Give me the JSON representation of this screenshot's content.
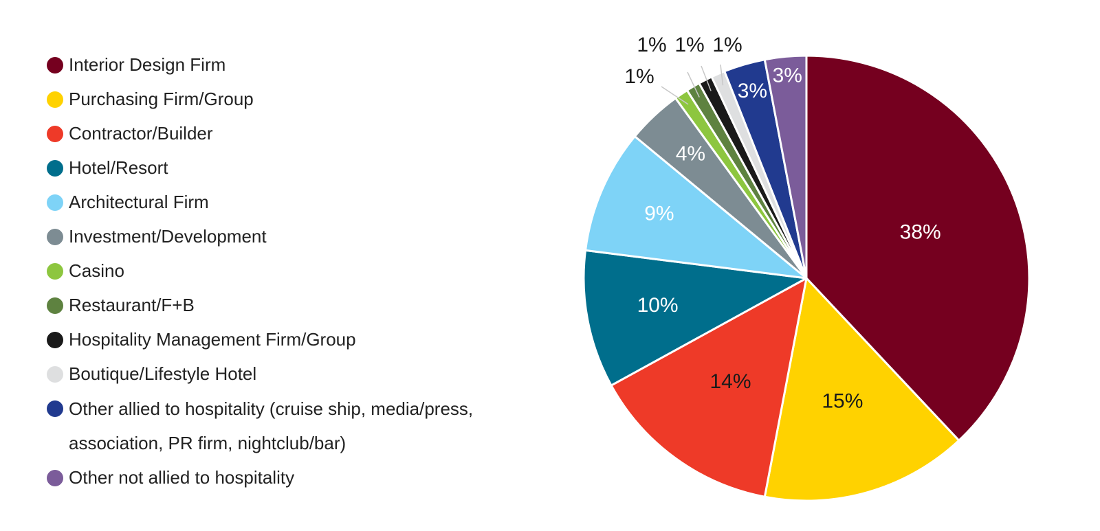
{
  "chart_data": {
    "type": "pie",
    "title": "",
    "legend_position": "left",
    "slices": [
      {
        "label": "Interior Design Firm",
        "value": 38,
        "display": "38%",
        "color": "#75001F",
        "label_color": "#ffffff"
      },
      {
        "label": "Purchasing Firm/Group",
        "value": 15,
        "display": "15%",
        "color": "#FFD200",
        "label_color": "#1a1a1a"
      },
      {
        "label": "Contractor/Builder",
        "value": 14,
        "display": "14%",
        "color": "#EE3A28",
        "label_color": "#1a1a1a"
      },
      {
        "label": "Hotel/Resort",
        "value": 10,
        "display": "10%",
        "color": "#006E8C",
        "label_color": "#ffffff"
      },
      {
        "label": "Architectural Firm",
        "value": 9,
        "display": "9%",
        "color": "#7ED3F7",
        "label_color": "#ffffff"
      },
      {
        "label": "Investment/Development",
        "value": 4,
        "display": "4%",
        "color": "#7D8C93",
        "label_color": "#ffffff"
      },
      {
        "label": "Casino",
        "value": 1,
        "display": "1%",
        "color": "#8DC63F",
        "label_color": "#1a1a1a"
      },
      {
        "label": "Restaurant/F+B",
        "value": 1,
        "display": "1%",
        "color": "#5E8240",
        "label_color": "#1a1a1a"
      },
      {
        "label": "Hospitality Management Firm/Group",
        "value": 1,
        "display": "1%",
        "color": "#1A1A1A",
        "label_color": "#1a1a1a"
      },
      {
        "label": "Boutique/Lifestyle Hotel",
        "value": 1,
        "display": "1%",
        "color": "#DEDFE0",
        "label_color": "#1a1a1a"
      },
      {
        "label": "Other allied to hospitality (cruise ship, media/press,\nassociation, PR firm, nightclub/bar)",
        "value": 3,
        "display": "3%",
        "color": "#213A8F",
        "label_color": "#ffffff"
      },
      {
        "label": "Other not allied to hospitality",
        "value": 3,
        "display": "3%",
        "color": "#7B5C9A",
        "label_color": "#ffffff"
      }
    ]
  }
}
